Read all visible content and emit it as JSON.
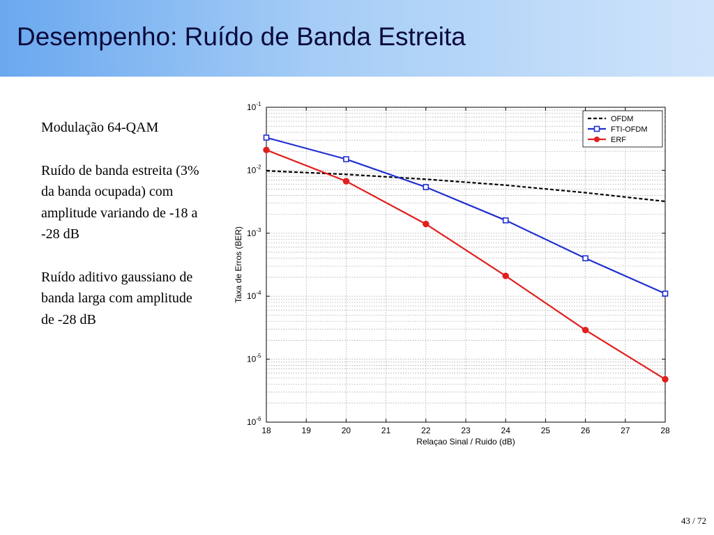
{
  "slide": {
    "title": "Desempenho: Ruído de Banda Estreita",
    "page": "43 / 72"
  },
  "bullets": [
    "Modulação 64-QAM",
    "Ruído de banda estreita (3% da banda ocupada) com amplitude variando de -18 a -28 dB",
    "Ruído aditivo gaussiano de banda larga com amplitude de -28 dB"
  ],
  "chart_data": {
    "type": "line",
    "xlabel": "Relaçao Sinal / Ruido (dB)",
    "ylabel": "Taxa de Erros (BER)",
    "xlim": [
      18,
      28
    ],
    "ylim": [
      1e-06,
      0.1
    ],
    "yscale": "log",
    "grid": true,
    "legend": "top-right",
    "x_ticks": [
      "18",
      "19",
      "20",
      "21",
      "22",
      "23",
      "24",
      "25",
      "26",
      "27",
      "28"
    ],
    "y_ticks": [
      {
        "base": "10",
        "exp": "-1"
      },
      {
        "base": "10",
        "exp": "-2"
      },
      {
        "base": "10",
        "exp": "-3"
      },
      {
        "base": "10",
        "exp": "-4"
      },
      {
        "base": "10",
        "exp": "-5"
      },
      {
        "base": "10",
        "exp": "-6"
      }
    ],
    "series": [
      {
        "name": "OFDM",
        "color": "#000000",
        "style": "dashed",
        "marker": "none",
        "x": [
          18,
          20,
          22,
          24,
          26,
          28
        ],
        "y": [
          0.0098,
          0.0086,
          0.0072,
          0.0058,
          0.0044,
          0.0032
        ]
      },
      {
        "name": "FTI-OFDM",
        "color": "#1f2fd0",
        "style": "solid",
        "marker": "square",
        "x": [
          18,
          20,
          22,
          24,
          26,
          28
        ],
        "y": [
          0.033,
          0.015,
          0.0054,
          0.0016,
          0.0004,
          0.00011
        ]
      },
      {
        "name": "ERF",
        "color": "#e01f1f",
        "style": "solid",
        "marker": "circle",
        "x": [
          18,
          20,
          22,
          24,
          26,
          28
        ],
        "y": [
          0.021,
          0.0067,
          0.0014,
          0.00021,
          2.9e-05,
          4.8e-06
        ]
      }
    ]
  }
}
